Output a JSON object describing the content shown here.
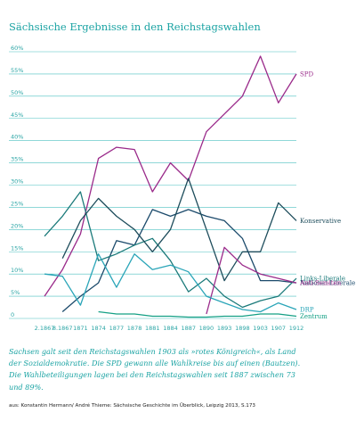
{
  "chart_data": {
    "type": "line",
    "title": "Sächsische Ergebnisse in den Reichstagswahlen",
    "x": [
      "2.1867",
      "8.1867",
      "1871",
      "1874",
      "1877",
      "1878",
      "1881",
      "1884",
      "1887",
      "1890",
      "1893",
      "1898",
      "1903",
      "1907",
      "1912"
    ],
    "yticks": [
      "0",
      "5%",
      "10%",
      "15%",
      "20%",
      "25%",
      "30%",
      "35%",
      "40%",
      "45%",
      "50%",
      "55%",
      "60%"
    ],
    "ylim": [
      0,
      60
    ],
    "grid": true,
    "legend": "inline-right",
    "series": [
      {
        "name": "SPD",
        "color": "#9a2a8a",
        "values": [
          5,
          11,
          19,
          36,
          38.5,
          38,
          28.5,
          35,
          31,
          42,
          46,
          50,
          59,
          48.5,
          55
        ]
      },
      {
        "name": "National-Liberale",
        "color": "#1b4a6b",
        "values": [
          null,
          1.5,
          5,
          8,
          17.5,
          16.5,
          24.5,
          23,
          24.5,
          23,
          22,
          18,
          8.5,
          8.5,
          8
        ]
      },
      {
        "name": "Links-Liberale",
        "color": "#1b7a7a",
        "values": [
          18.5,
          23,
          28.5,
          13,
          14.5,
          16.5,
          18,
          13,
          6,
          9,
          5,
          2.5,
          4,
          5,
          9
        ]
      },
      {
        "name": "Konservative",
        "color": "#1e4d5c",
        "values": [
          null,
          13.5,
          22,
          27,
          23,
          20,
          15,
          20,
          31.5,
          20,
          8.5,
          15,
          15,
          26,
          22
        ]
      },
      {
        "name": "Anti-Semiten",
        "color": "#9a2a8a",
        "values": [
          null,
          null,
          null,
          null,
          null,
          null,
          null,
          null,
          null,
          1,
          16,
          12,
          10,
          9,
          8
        ]
      },
      {
        "name": "DRP",
        "color": "#2aa5b8",
        "values": [
          10,
          9.5,
          3,
          14.5,
          7,
          14.5,
          11,
          12,
          10.5,
          5,
          3.5,
          2,
          1.5,
          3.5,
          2
        ]
      },
      {
        "name": "Zentrum",
        "color": "#14a085",
        "values": [
          null,
          null,
          null,
          1.5,
          1,
          1,
          0.5,
          0.5,
          0.3,
          0.3,
          0.5,
          0.5,
          1,
          1,
          0.5
        ]
      }
    ]
  },
  "text": {
    "caption": "Sachsen galt seit den Reichstagswahlen 1903 als »rotes Königreich«, als Land der Sozialdemokratie. Die SPD gewann alle Wahlkreise bis auf einen (Bautzen). Die Wahlbeteiligungen lagen bei den Reichstagswahlen seit 1887 zwischen 73 und 89%.",
    "source": "aus: Konstantin Hermann/ André Thieme: Sächsische Geschichte im Überblick, Leipzig 2013, S.173"
  },
  "colors": {
    "accent": "#1aa3a3",
    "grid": "#4cc0c0"
  }
}
